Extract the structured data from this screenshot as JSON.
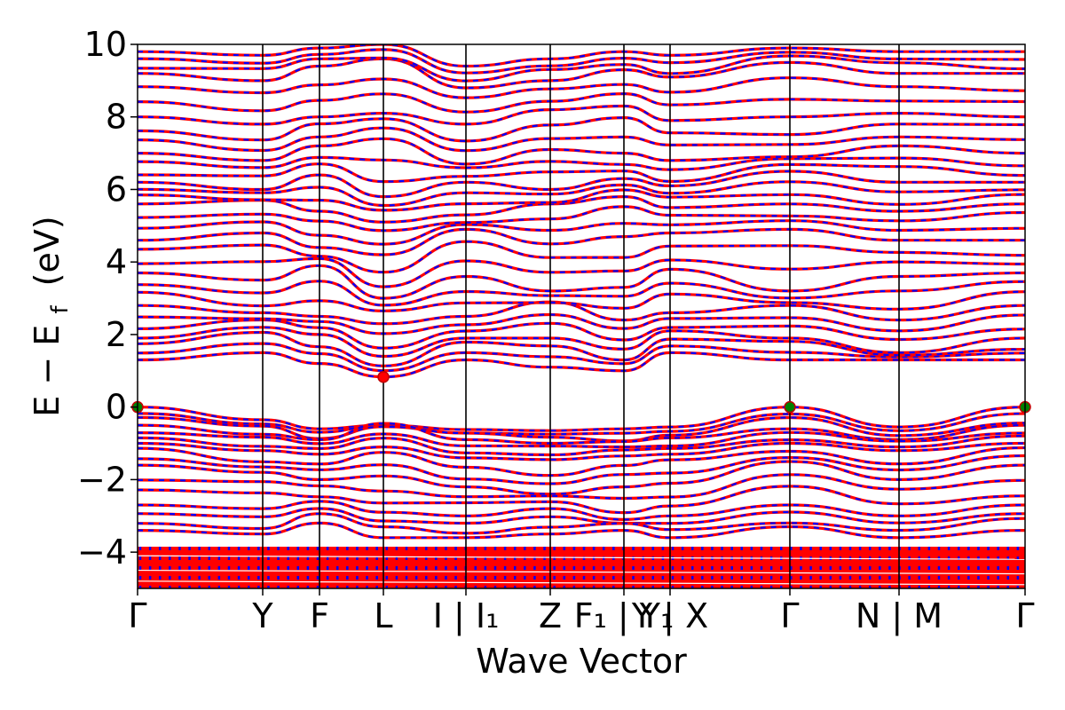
{
  "chart_data": {
    "type": "line",
    "title": "",
    "xlabel": "Wave Vector",
    "ylabel": "E − E",
    "ylabel_subscript": "f",
    "ylabel_unit": "(eV)",
    "ylim": [
      -5,
      10
    ],
    "yticks": [
      -4,
      -2,
      0,
      2,
      4,
      6,
      8,
      10
    ],
    "ytick_labels": [
      "−4",
      "−2",
      "0",
      "2",
      "4",
      "6",
      "8",
      "10"
    ],
    "grid": false,
    "legend": "none",
    "kpath": [
      {
        "pos": 0.0,
        "label": "Γ"
      },
      {
        "pos": 0.141,
        "label": "Y"
      },
      {
        "pos": 0.205,
        "label": "F"
      },
      {
        "pos": 0.277,
        "label": "L"
      },
      {
        "pos": 0.37,
        "label": "I | I₁"
      },
      {
        "pos": 0.465,
        "label": "Z"
      },
      {
        "pos": 0.548,
        "label": "F₁ | Y₁"
      },
      {
        "pos": 0.6,
        "label": "Y | X"
      },
      {
        "pos": 0.735,
        "label": "Γ"
      },
      {
        "pos": 0.858,
        "label": "N | M"
      },
      {
        "pos": 1.0,
        "label": "Γ"
      }
    ],
    "series": [
      {
        "color": "#ff0000",
        "style": "solid",
        "width": 3.2
      },
      {
        "color": "#0000ff",
        "style": "dashed",
        "width": 2.2
      }
    ],
    "valence_bands_sample": [
      [
        0.0,
        -0.35,
        -0.6,
        -0.5,
        -0.62,
        -0.65,
        -0.6,
        -0.55,
        0.0,
        -0.55,
        0.0
      ],
      [
        -0.5,
        -0.75,
        -0.9,
        -0.45,
        -0.9,
        -1.0,
        -0.95,
        -0.85,
        -0.6,
        -0.9,
        -0.5
      ],
      [
        -1.0,
        -1.2,
        -1.3,
        -1.1,
        -1.4,
        -1.45,
        -1.35,
        -1.3,
        -1.0,
        -1.2,
        -1.0
      ],
      [
        -1.6,
        -1.8,
        -2.0,
        -1.9,
        -2.2,
        -2.4,
        -2.2,
        -2.1,
        -1.5,
        -2.0,
        -1.6
      ],
      [
        -2.7,
        -2.8,
        -2.6,
        -2.9,
        -3.0,
        -2.8,
        -3.1,
        -3.0,
        -2.7,
        -3.0,
        -2.7
      ],
      [
        -3.4,
        -3.5,
        -3.2,
        -3.6,
        -3.6,
        -3.5,
        -3.4,
        -3.6,
        -3.3,
        -3.6,
        -3.4
      ]
    ],
    "conduction_bands_sample": [
      [
        1.3,
        1.5,
        1.2,
        0.83,
        1.3,
        1.1,
        1.0,
        1.5,
        1.3,
        1.3,
        1.3
      ],
      [
        1.9,
        2.2,
        2.0,
        1.4,
        1.9,
        1.9,
        1.6,
        2.1,
        1.9,
        1.5,
        1.9
      ],
      [
        2.8,
        2.6,
        2.5,
        2.3,
        2.5,
        2.9,
        2.4,
        2.6,
        2.8,
        2.4,
        2.8
      ],
      [
        3.7,
        3.5,
        3.9,
        3.0,
        3.6,
        3.2,
        3.3,
        3.8,
        3.2,
        3.6,
        3.7
      ],
      [
        4.6,
        4.8,
        4.4,
        4.2,
        4.9,
        4.5,
        4.7,
        4.8,
        4.9,
        4.6,
        4.6
      ],
      [
        5.6,
        5.7,
        5.4,
        5.1,
        5.3,
        5.6,
        5.8,
        5.5,
        5.6,
        5.4,
        5.6
      ],
      [
        6.2,
        6.0,
        6.4,
        5.8,
        6.2,
        6.0,
        6.3,
        6.1,
        6.5,
        6.2,
        6.2
      ],
      [
        7.0,
        6.8,
        7.2,
        7.4,
        6.7,
        7.1,
        7.0,
        6.8,
        6.9,
        7.2,
        7.0
      ],
      [
        8.0,
        7.8,
        8.0,
        8.1,
        7.8,
        8.2,
        8.3,
        7.9,
        8.0,
        8.1,
        8.0
      ],
      [
        9.2,
        9.0,
        9.4,
        9.6,
        8.8,
        9.0,
        9.3,
        9.1,
        9.5,
        9.2,
        9.2
      ],
      [
        9.8,
        9.7,
        9.9,
        10.0,
        9.4,
        9.6,
        9.8,
        9.7,
        9.9,
        9.8,
        9.8
      ]
    ],
    "markers": [
      {
        "pos": 0.0,
        "y": 0.0,
        "color": "#008000",
        "type": "VBM"
      },
      {
        "pos": 0.735,
        "y": 0.0,
        "color": "#008000",
        "type": "VBM"
      },
      {
        "pos": 1.0,
        "y": 0.0,
        "color": "#008000",
        "type": "VBM"
      },
      {
        "pos": 0.277,
        "y": 0.83,
        "color": "#ff0000",
        "type": "CBM"
      }
    ]
  }
}
